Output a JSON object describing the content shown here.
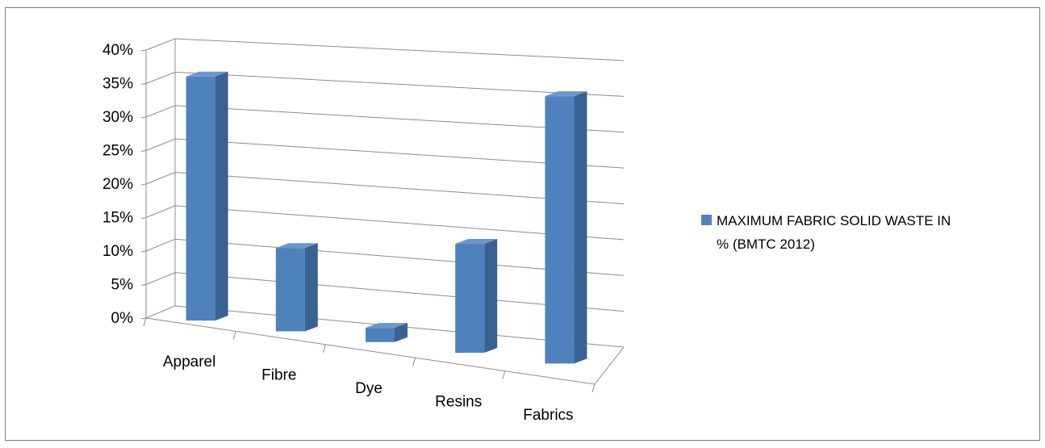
{
  "chart_data": {
    "type": "bar",
    "style": "3d-perspective",
    "categories": [
      "Apparel",
      "Fibre",
      "Dye",
      "Resins",
      "Fabrics"
    ],
    "series": [
      {
        "name": "MAXIMUM FABRIC SOLID WASTE IN % (BMTC 2012)",
        "values": [
          0.36,
          0.12,
          0.02,
          0.15,
          0.36
        ],
        "color": "#4f81bd"
      }
    ],
    "y_ticks": [
      "0%",
      "5%",
      "10%",
      "15%",
      "20%",
      "25%",
      "30%",
      "35%",
      "40%"
    ],
    "ylim": [
      0,
      0.4
    ],
    "y_format": "percent",
    "grid": true,
    "legend_position": "right",
    "title": "",
    "xlabel": "",
    "ylabel": ""
  },
  "legend": {
    "line1": "MAXIMUM FABRIC SOLID WASTE IN",
    "line2": "% (BMTC 2012)"
  }
}
